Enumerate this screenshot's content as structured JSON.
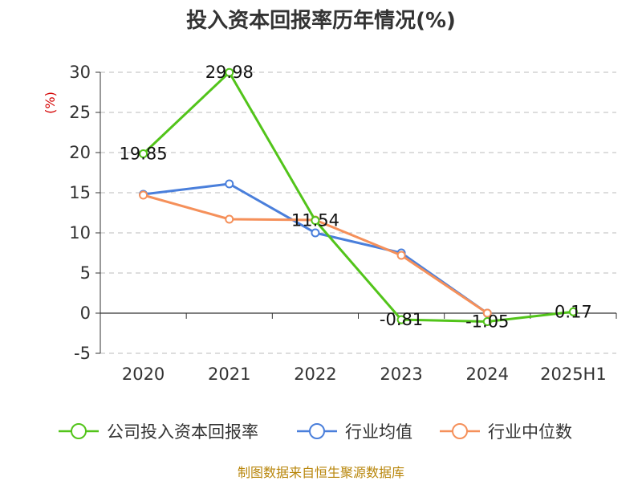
{
  "chart_data": {
    "type": "line",
    "title": "投入资本回报率历年情况(%)",
    "unit_label": "(%)",
    "categories": [
      "2020",
      "2021",
      "2022",
      "2023",
      "2024",
      "2025H1"
    ],
    "ylim": [
      -5,
      30
    ],
    "yticks": [
      -5,
      0,
      5,
      10,
      15,
      20,
      25,
      30
    ],
    "grid": true,
    "legend_position": "bottom",
    "series": [
      {
        "name": "公司投入资本回报率",
        "color": "#52c41a",
        "values": [
          19.85,
          29.98,
          11.54,
          -0.81,
          -1.05,
          0.17
        ],
        "labels": [
          "19.85",
          "29.98",
          "11.54",
          "-0.81",
          "-1.05",
          "0.17"
        ]
      },
      {
        "name": "行业均值",
        "color": "#4a7fdb",
        "values": [
          14.8,
          16.1,
          10.0,
          7.5,
          0.0,
          null
        ]
      },
      {
        "name": "行业中位数",
        "color": "#f5905a",
        "values": [
          14.7,
          11.7,
          11.6,
          7.2,
          0.0,
          null
        ]
      }
    ],
    "source": "制图数据来自恒生聚源数据库"
  }
}
